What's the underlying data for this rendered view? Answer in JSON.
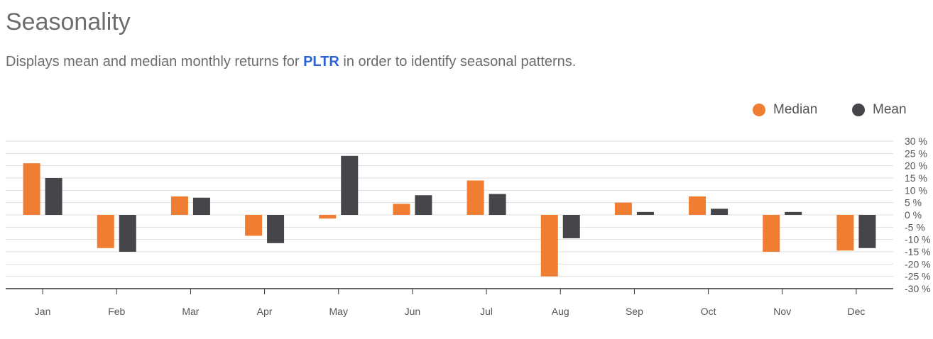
{
  "header": {
    "title": "Seasonality",
    "subtitle_before": "Displays mean and median monthly returns for ",
    "ticker": "PLTR",
    "subtitle_after": " in order to identify seasonal patterns."
  },
  "colors": {
    "median": "#ef7d32",
    "mean": "#45454a",
    "grid": "#dedede",
    "axis": "#333333",
    "ticker": "#2c63d6"
  },
  "chart_data": {
    "type": "bar",
    "title": "Seasonality",
    "categories": [
      "Jan",
      "Feb",
      "Mar",
      "Apr",
      "May",
      "Jun",
      "Jul",
      "Aug",
      "Sep",
      "Oct",
      "Nov",
      "Dec"
    ],
    "series": [
      {
        "name": "Median",
        "color": "#ef7d32",
        "values": [
          21,
          -13.5,
          7.5,
          -8.5,
          -1.5,
          4.5,
          14,
          -25,
          5,
          7.5,
          -15,
          -14.5
        ]
      },
      {
        "name": "Mean",
        "color": "#45454a",
        "values": [
          15,
          -15,
          7,
          -11.5,
          24,
          8,
          8.5,
          -9.5,
          1.2,
          2.5,
          1.2,
          -13.5
        ]
      }
    ],
    "yticks": [
      30,
      25,
      20,
      15,
      10,
      5,
      0,
      -5,
      -10,
      -15,
      -20,
      -25,
      -30
    ],
    "ytick_labels": [
      "30 %",
      "25 %",
      "20 %",
      "15 %",
      "10 %",
      "5 %",
      "0 %",
      "-5 %",
      "-10 %",
      "-15 %",
      "-20 %",
      "-25 %",
      "-30 %"
    ],
    "ylim": [
      -30,
      30
    ],
    "legend": [
      "Median",
      "Mean"
    ],
    "legend_position": "top-right",
    "grid": true
  }
}
